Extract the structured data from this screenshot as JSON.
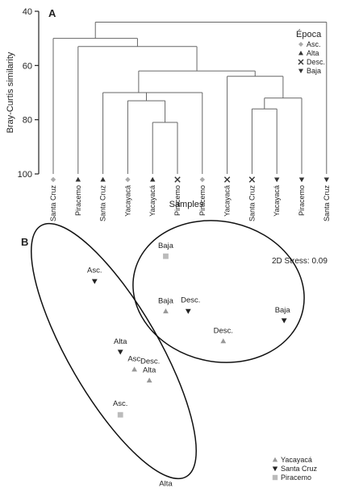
{
  "chart_data": [
    {
      "type": "dendrogram",
      "panel_label": "A",
      "ylabel": "Bray-Curtis similarity",
      "xlabel": "Samples",
      "ylim": [
        40,
        100
      ],
      "y_ticks": [
        "40",
        "60",
        "80",
        "100"
      ],
      "y_tick_values": [
        40,
        60,
        80,
        100
      ],
      "legend": {
        "title": "Época",
        "entries": [
          {
            "label": "Asc.",
            "marker": "diamond",
            "color": "#aaaaaa"
          },
          {
            "label": "Alta",
            "marker": "triangle-up",
            "color": "#333333"
          },
          {
            "label": "Desc.",
            "marker": "cross",
            "color": "#333333"
          },
          {
            "label": "Baja",
            "marker": "triangle-down",
            "color": "#333333"
          }
        ]
      },
      "leaves": [
        {
          "label": "Santa Cruz",
          "epoca": "Asc."
        },
        {
          "label": "Piracemo",
          "epoca": "Alta"
        },
        {
          "label": "Santa Cruz",
          "epoca": "Alta"
        },
        {
          "label": "Yacayacá",
          "epoca": "Asc."
        },
        {
          "label": "Yacayacá",
          "epoca": "Alta"
        },
        {
          "label": "Piracemo",
          "epoca": "Desc."
        },
        {
          "label": "Piracemo",
          "epoca": "Asc."
        },
        {
          "label": "Yacayacá",
          "epoca": "Desc."
        },
        {
          "label": "Santa Cruz",
          "epoca": "Desc."
        },
        {
          "label": "Yacayacá",
          "epoca": "Baja"
        },
        {
          "label": "Piracemo",
          "epoca": "Baja"
        },
        {
          "label": "Santa Cruz",
          "epoca": "Baja"
        }
      ],
      "merges": [
        {
          "a": 4,
          "b": 5,
          "similarity": 81
        },
        {
          "a": 3,
          "b": "m0",
          "similarity": 73
        },
        {
          "a": 8,
          "b": 9,
          "similarity": 76
        },
        {
          "a": "m2",
          "b": 10,
          "similarity": 72
        },
        {
          "a": "m1",
          "b": 6,
          "similarity": 70
        },
        {
          "a": 7,
          "b": "m3",
          "similarity": 64
        },
        {
          "a": 2,
          "b": "m4",
          "similarity": 70
        },
        {
          "a": "m6",
          "b": "m5",
          "similarity": 62
        },
        {
          "a": 1,
          "b": "m7",
          "similarity": 53
        },
        {
          "a": 0,
          "b": "m8",
          "similarity": 50
        },
        {
          "a": "m9",
          "b": 11,
          "similarity": 44
        }
      ]
    },
    {
      "type": "scatter",
      "panel_label": "B",
      "stress_text": "2D Stress: 0.09",
      "series": [
        {
          "name": "Yacayacá",
          "marker": "triangle-up",
          "color": "#999999"
        },
        {
          "name": "Santa Cruz",
          "marker": "triangle-down",
          "color": "#222222"
        },
        {
          "name": "Piracemo",
          "marker": "square",
          "color": "#bbbbbb"
        }
      ],
      "points": [
        {
          "series": "Piracemo",
          "label": "Baja",
          "x": 0.37,
          "y": 0.84
        },
        {
          "series": "Santa Cruz",
          "label": "Asc.",
          "x": -1.15,
          "y": 0.68
        },
        {
          "series": "Yacayacá",
          "label": "Baja",
          "x": 0.37,
          "y": 0.49
        },
        {
          "series": "Santa Cruz",
          "label": "Desc.",
          "x": 0.85,
          "y": 0.49
        },
        {
          "series": "Santa Cruz",
          "label": "Baja",
          "x": 2.9,
          "y": 0.43
        },
        {
          "series": "Yacayacá",
          "label": "Desc.",
          "x": 1.6,
          "y": 0.3
        },
        {
          "series": "Santa Cruz",
          "label": "Alta",
          "x": -0.6,
          "y": 0.23
        },
        {
          "series": "Yacayacá",
          "label": "Asc.",
          "x": -0.3,
          "y": 0.12
        },
        {
          "series": "Yacayacá",
          "label": "Alta",
          "x": 0.02,
          "y": 0.05
        },
        {
          "series": "Piracemo",
          "label": "Desc.",
          "x": 0.02,
          "y": 0.05
        },
        {
          "series": "Piracemo",
          "label": "Asc.",
          "x": -0.6,
          "y": -0.17
        },
        {
          "series": "Piracemo",
          "label": "Alta",
          "x": 0.37,
          "y": -0.68
        }
      ]
    }
  ]
}
